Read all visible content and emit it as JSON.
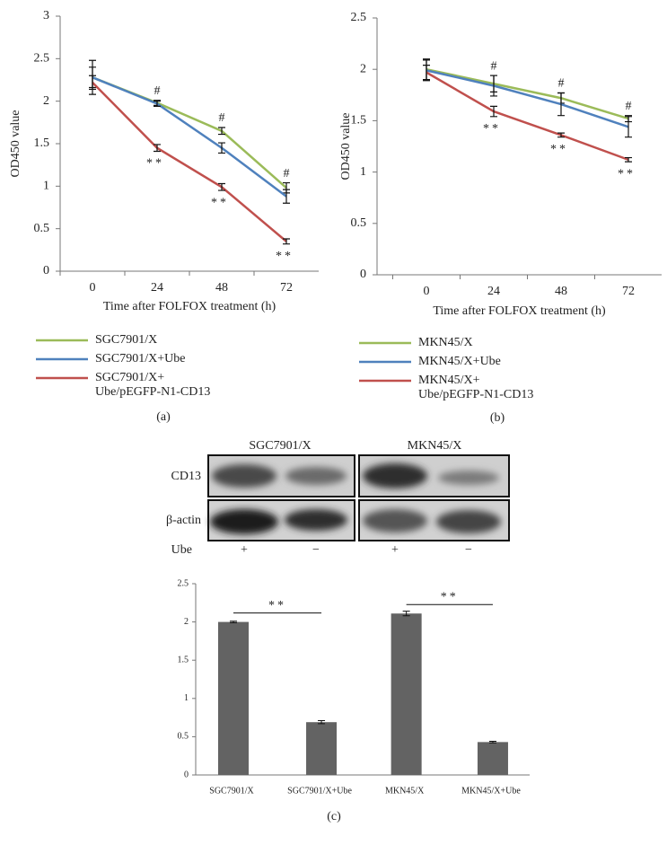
{
  "chart_data": [
    {
      "type": "line",
      "panel_label": "(a)",
      "x_label": "Time after FOLFOX treatment (h)",
      "y_label": "OD450 value",
      "categories": [
        "0",
        "24",
        "48",
        "72"
      ],
      "ylim": [
        0,
        3
      ],
      "yticks": [
        0,
        0.5,
        1,
        1.5,
        2,
        2.5,
        3
      ],
      "series": [
        {
          "name": "SGC7901/X",
          "color": "#9bbb59",
          "values": [
            2.28,
            1.98,
            1.65,
            0.98
          ],
          "errors": [
            0.12,
            0.03,
            0.04,
            0.06
          ]
        },
        {
          "name": "SGC7901/X+Ube",
          "color": "#4f81bd",
          "values": [
            2.28,
            1.97,
            1.45,
            0.88
          ],
          "errors": [
            0.2,
            0.03,
            0.06,
            0.08
          ]
        },
        {
          "name": "SGC7901/X+Ube/pEGFP-N1-CD13",
          "color": "#c0504d",
          "values": [
            2.22,
            1.45,
            0.99,
            0.35
          ],
          "errors": [
            0.08,
            0.04,
            0.04,
            0.03
          ]
        }
      ],
      "annotations": [
        {
          "text": "#",
          "category": "24",
          "series": 0
        },
        {
          "text": "#",
          "category": "48",
          "series": 0
        },
        {
          "text": "#",
          "category": "72",
          "series": 0
        },
        {
          "text": "**",
          "category": "24",
          "series": 2
        },
        {
          "text": "**",
          "category": "48",
          "series": 2
        },
        {
          "text": "**",
          "category": "72",
          "series": 2
        }
      ]
    },
    {
      "type": "line",
      "panel_label": "(b)",
      "x_label": "Time after FOLFOX treatment (h)",
      "y_label": "OD450 value",
      "categories": [
        "0",
        "24",
        "48",
        "72"
      ],
      "ylim": [
        0,
        2.5
      ],
      "yticks": [
        0,
        0.5,
        1,
        1.5,
        2,
        2.5
      ],
      "series": [
        {
          "name": "MKN45/X",
          "color": "#9bbb59",
          "values": [
            2.0,
            1.86,
            1.72,
            1.52
          ],
          "errors": [
            0.1,
            0.08,
            0.05,
            0.03
          ]
        },
        {
          "name": "MKN45/X+Ube",
          "color": "#4f81bd",
          "values": [
            1.99,
            1.84,
            1.66,
            1.44
          ],
          "errors": [
            0.1,
            0.1,
            0.11,
            0.1
          ]
        },
        {
          "name": "MKN45/X+Ube/pEGFP-N1-CD13",
          "color": "#c0504d",
          "values": [
            1.97,
            1.59,
            1.36,
            1.12
          ],
          "errors": [
            0.07,
            0.05,
            0.02,
            0.02
          ]
        }
      ],
      "annotations": [
        {
          "text": "#",
          "category": "24",
          "series": 0
        },
        {
          "text": "#",
          "category": "48",
          "series": 0
        },
        {
          "text": "#",
          "category": "72",
          "series": 0
        },
        {
          "text": "**",
          "category": "24",
          "series": 2
        },
        {
          "text": "**",
          "category": "48",
          "series": 2
        },
        {
          "text": "**",
          "category": "72",
          "series": 2
        }
      ]
    },
    {
      "type": "bar",
      "panel_label": "(c)",
      "color": "#636363",
      "categories": [
        "SGC7901/X",
        "SGC7901/X+Ube",
        "MKN45/X",
        "MKN45/X+Ube"
      ],
      "values": [
        2.0,
        0.69,
        2.11,
        0.43
      ],
      "errors": [
        0.01,
        0.02,
        0.03,
        0.01
      ],
      "ylim": [
        0,
        2.5
      ],
      "yticks": [
        0,
        0.5,
        1,
        1.5,
        2,
        2.5
      ],
      "brackets": [
        {
          "from": 0,
          "to": 1,
          "text": "**"
        },
        {
          "from": 2,
          "to": 3,
          "text": "**"
        }
      ]
    }
  ],
  "western_blot": {
    "columns": [
      "SGC7901/X",
      "MKN45/X"
    ],
    "rows": [
      "CD13",
      "β-actin"
    ],
    "treatment_label": "Ube",
    "treatment": [
      "+",
      "−",
      "+",
      "−"
    ]
  }
}
